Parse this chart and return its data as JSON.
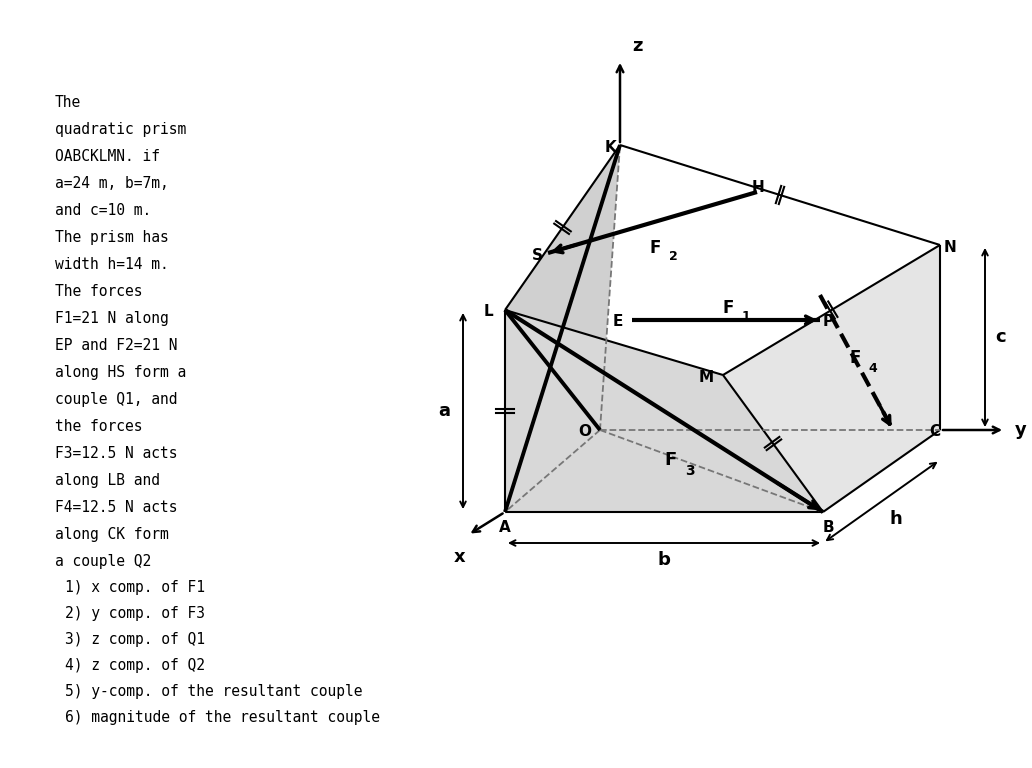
{
  "bg_color": "#ffffff",
  "problem_text": [
    "The",
    "quadratic prism",
    "OABCKLMN. if",
    "a=24 m, b=7m,",
    "and c=10 m.",
    "The prism has",
    "width h=14 m.",
    "The forces",
    "F1=21 N along",
    "EP and F2=21 N",
    "along HS form a",
    "couple Q1, and",
    "the forces",
    "F3=12.5 N acts",
    "along LB and",
    "F4=12.5 N acts",
    "along CK form",
    "a couple Q2"
  ],
  "questions": [
    "   1) x comp. of F1",
    "   2) y comp. of F3",
    "   3) z comp. of Q1",
    "   4) z comp. of Q2",
    "   5) y-comp. of the resultant couple",
    "   6) magnitude of the resultant couple"
  ]
}
